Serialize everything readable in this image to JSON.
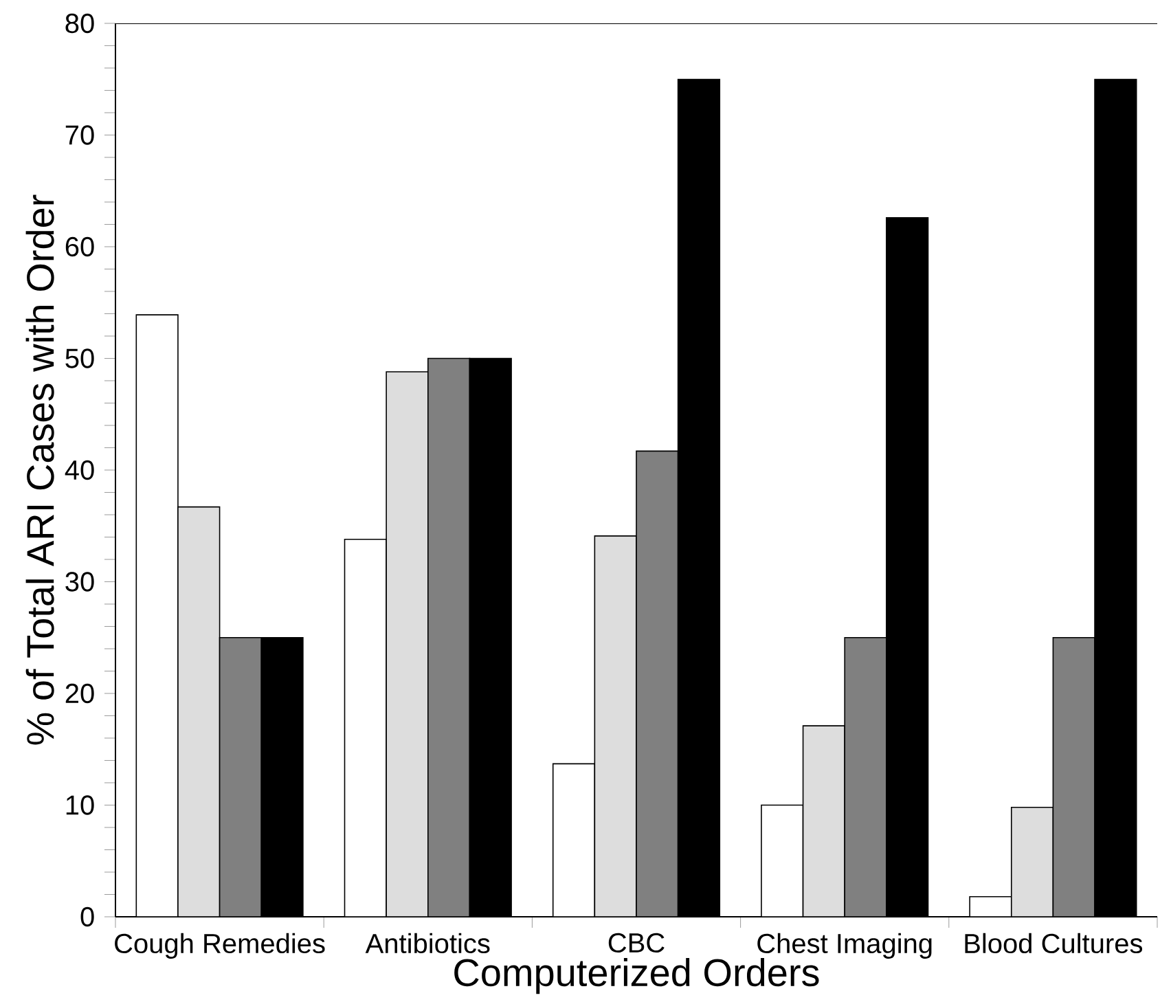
{
  "chart_data": {
    "type": "bar",
    "xlabel": "Computerized Orders",
    "ylabel": "% of Total ARI Cases with Order",
    "categories": [
      "Cough Remedies",
      "Antibiotics",
      "CBC",
      "Chest Imaging",
      "Blood Cultures"
    ],
    "ylim": [
      0,
      80
    ],
    "yticks": [
      0,
      10,
      20,
      30,
      40,
      50,
      60,
      70,
      80
    ],
    "series": [
      {
        "color": "#ffffff",
        "values": [
          53.9,
          33.8,
          13.7,
          10.0,
          1.8
        ]
      },
      {
        "color": "#dddddd",
        "values": [
          36.7,
          48.8,
          34.1,
          17.1,
          9.8
        ]
      },
      {
        "color": "#808080",
        "values": [
          25,
          50,
          41.7,
          25,
          25
        ]
      },
      {
        "color": "#000000",
        "values": [
          25,
          50,
          75,
          62.6,
          75
        ]
      }
    ]
  }
}
